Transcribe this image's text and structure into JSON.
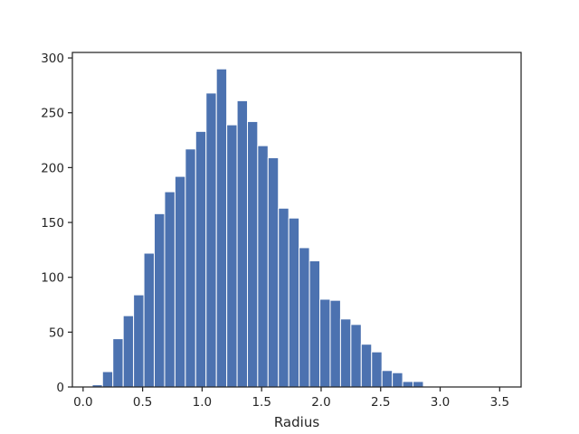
{
  "chart_data": {
    "type": "bar",
    "subtype": "histogram",
    "xlabel": "Radius",
    "ylabel": "",
    "title": "",
    "xlim": [
      -0.09,
      3.68
    ],
    "ylim": [
      0,
      305
    ],
    "xticks": [
      0.0,
      0.5,
      1.0,
      1.5,
      2.0,
      2.5,
      3.0,
      3.5
    ],
    "xtick_labels": [
      "0.0",
      "0.5",
      "1.0",
      "1.5",
      "2.0",
      "2.5",
      "3.0",
      "3.5"
    ],
    "yticks": [
      0,
      50,
      100,
      150,
      200,
      250,
      300
    ],
    "ytick_labels": [
      "0",
      "50",
      "100",
      "150",
      "200",
      "250",
      "300"
    ],
    "bar_color": "#4c72b0",
    "edge_color": "#ffffff",
    "grid": false,
    "bins": [
      {
        "x0": 0.077,
        "x1": 0.163,
        "count": 2
      },
      {
        "x0": 0.163,
        "x1": 0.25,
        "count": 14
      },
      {
        "x0": 0.25,
        "x1": 0.337,
        "count": 44
      },
      {
        "x0": 0.337,
        "x1": 0.424,
        "count": 65
      },
      {
        "x0": 0.424,
        "x1": 0.511,
        "count": 84
      },
      {
        "x0": 0.511,
        "x1": 0.598,
        "count": 122
      },
      {
        "x0": 0.598,
        "x1": 0.685,
        "count": 158
      },
      {
        "x0": 0.685,
        "x1": 0.772,
        "count": 178
      },
      {
        "x0": 0.772,
        "x1": 0.859,
        "count": 192
      },
      {
        "x0": 0.859,
        "x1": 0.946,
        "count": 217
      },
      {
        "x0": 0.946,
        "x1": 1.033,
        "count": 233
      },
      {
        "x0": 1.033,
        "x1": 1.12,
        "count": 268
      },
      {
        "x0": 1.12,
        "x1": 1.207,
        "count": 290
      },
      {
        "x0": 1.207,
        "x1": 1.294,
        "count": 239
      },
      {
        "x0": 1.294,
        "x1": 1.381,
        "count": 261
      },
      {
        "x0": 1.381,
        "x1": 1.467,
        "count": 242
      },
      {
        "x0": 1.467,
        "x1": 1.554,
        "count": 220
      },
      {
        "x0": 1.554,
        "x1": 1.641,
        "count": 209
      },
      {
        "x0": 1.641,
        "x1": 1.728,
        "count": 163
      },
      {
        "x0": 1.728,
        "x1": 1.815,
        "count": 154
      },
      {
        "x0": 1.815,
        "x1": 1.902,
        "count": 127
      },
      {
        "x0": 1.902,
        "x1": 1.989,
        "count": 115
      },
      {
        "x0": 1.989,
        "x1": 2.076,
        "count": 80
      },
      {
        "x0": 2.076,
        "x1": 2.163,
        "count": 79
      },
      {
        "x0": 2.163,
        "x1": 2.25,
        "count": 62
      },
      {
        "x0": 2.25,
        "x1": 2.337,
        "count": 57
      },
      {
        "x0": 2.337,
        "x1": 2.424,
        "count": 39
      },
      {
        "x0": 2.424,
        "x1": 2.511,
        "count": 32
      },
      {
        "x0": 2.511,
        "x1": 2.598,
        "count": 15
      },
      {
        "x0": 2.598,
        "x1": 2.685,
        "count": 13
      },
      {
        "x0": 2.685,
        "x1": 2.772,
        "count": 5
      },
      {
        "x0": 2.772,
        "x1": 2.859,
        "count": 5
      }
    ]
  }
}
